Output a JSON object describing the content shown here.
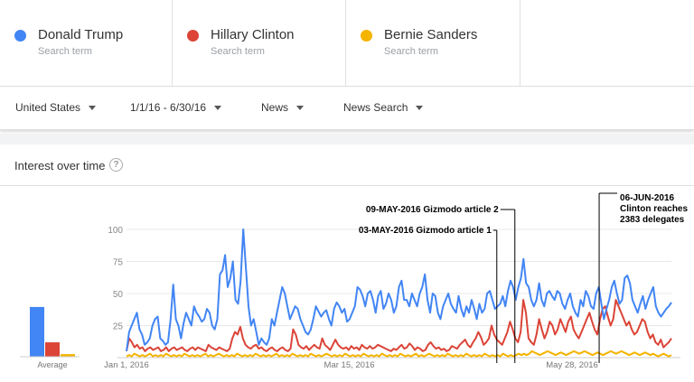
{
  "terms": [
    {
      "name": "Donald Trump",
      "sub": "Search term",
      "color": "#4285f4"
    },
    {
      "name": "Hillary Clinton",
      "sub": "Search term",
      "color": "#db4437"
    },
    {
      "name": "Bernie Sanders",
      "sub": "Search term",
      "color": "#f4b400"
    }
  ],
  "filters": {
    "region": "United States",
    "date_range": "1/1/16 - 6/30/16",
    "category": "News",
    "search_type": "News Search"
  },
  "card": {
    "title": "Interest over time",
    "help_icon": "help-circle-icon"
  },
  "average": {
    "label": "Average",
    "values": [
      38,
      11,
      2
    ]
  },
  "chart_data": {
    "type": "line",
    "title": "Interest over time",
    "ylim": [
      0,
      100
    ],
    "yticks": [
      "100",
      "75",
      "50",
      "25"
    ],
    "xtick_labels": [
      "Jan 1, 2016",
      "Mar 15, 2016",
      "May 28, 2016"
    ],
    "x_range": [
      "2016-01-01",
      "2016-06-30"
    ],
    "grid": true,
    "series": [
      {
        "name": "Donald Trump",
        "color": "#4285f4",
        "values": [
          5,
          20,
          25,
          30,
          35,
          22,
          18,
          10,
          12,
          15,
          25,
          30,
          32,
          15,
          13,
          10,
          12,
          30,
          57,
          30,
          25,
          15,
          27,
          35,
          30,
          25,
          40,
          35,
          32,
          28,
          30,
          38,
          35,
          25,
          22,
          30,
          65,
          68,
          80,
          55,
          62,
          75,
          45,
          42,
          60,
          100,
          70,
          40,
          25,
          30,
          20,
          10,
          15,
          12,
          10,
          15,
          30,
          25,
          35,
          45,
          55,
          50,
          40,
          30,
          35,
          40,
          38,
          30,
          25,
          20,
          18,
          22,
          30,
          40,
          36,
          32,
          35,
          37,
          30,
          25,
          38,
          43,
          40,
          35,
          38,
          28,
          30,
          35,
          40,
          55,
          53,
          48,
          40,
          50,
          52,
          45,
          35,
          48,
          52,
          38,
          42,
          50,
          45,
          35,
          40,
          55,
          60,
          45,
          45,
          40,
          50,
          45,
          40,
          50,
          55,
          65,
          45,
          35,
          50,
          48,
          35,
          30,
          40,
          45,
          50,
          42,
          38,
          35,
          48,
          38,
          32,
          40,
          35,
          45,
          38,
          30,
          42,
          35,
          38,
          50,
          52,
          45,
          38,
          40,
          42,
          48,
          40,
          52,
          60,
          55,
          45,
          55,
          62,
          77,
          58,
          55,
          45,
          40,
          45,
          58,
          45,
          40,
          50,
          52,
          48,
          45,
          52,
          50,
          42,
          38,
          45,
          50,
          40,
          35,
          32,
          45,
          40,
          52,
          48,
          40,
          38,
          50,
          55,
          42,
          30,
          38,
          45,
          55,
          60,
          50,
          42,
          45,
          62,
          64,
          58,
          45,
          40,
          35,
          42,
          48,
          38,
          45,
          50,
          55,
          40,
          35,
          32,
          35,
          38,
          40,
          43
        ]
      },
      {
        "name": "Hillary Clinton",
        "color": "#db4437",
        "values": [
          5,
          15,
          12,
          8,
          10,
          7,
          8,
          5,
          7,
          8,
          6,
          7,
          8,
          5,
          6,
          8,
          5,
          7,
          8,
          6,
          7,
          8,
          6,
          5,
          7,
          8,
          6,
          8,
          7,
          6,
          5,
          10,
          8,
          7,
          6,
          8,
          7,
          6,
          5,
          7,
          15,
          20,
          18,
          24,
          15,
          10,
          8,
          7,
          9,
          10,
          7,
          8,
          6,
          5,
          7,
          8,
          6,
          5,
          7,
          8,
          6,
          5,
          7,
          22,
          18,
          10,
          8,
          7,
          9,
          6,
          8,
          10,
          8,
          7,
          15,
          10,
          8,
          6,
          10,
          14,
          10,
          8,
          7,
          8,
          6,
          9,
          7,
          8,
          6,
          10,
          8,
          7,
          9,
          7,
          8,
          10,
          9,
          8,
          7,
          6,
          5,
          7,
          6,
          8,
          10,
          7,
          8,
          11,
          9,
          6,
          8,
          7,
          5,
          6,
          10,
          12,
          9,
          7,
          8,
          6,
          7,
          5,
          6,
          9,
          8,
          7,
          10,
          12,
          14,
          10,
          8,
          12,
          15,
          20,
          16,
          10,
          12,
          15,
          25,
          18,
          14,
          12,
          10,
          15,
          20,
          28,
          22,
          15,
          12,
          20,
          45,
          35,
          15,
          12,
          10,
          18,
          30,
          22,
          15,
          20,
          28,
          25,
          18,
          22,
          30,
          25,
          20,
          28,
          32,
          22,
          18,
          15,
          20,
          25,
          30,
          35,
          28,
          22,
          18,
          30,
          38,
          40,
          32,
          25,
          30,
          45,
          40,
          35,
          30,
          25,
          28,
          22,
          18,
          20,
          25,
          30,
          28,
          20,
          15,
          18,
          12,
          10,
          14,
          8,
          10,
          12,
          15
        ]
      },
      {
        "name": "Bernie Sanders",
        "color": "#f4b400",
        "values": [
          1,
          2,
          1,
          3,
          2,
          1,
          2,
          1,
          2,
          3,
          1,
          2,
          1,
          2,
          1,
          3,
          2,
          1,
          2,
          1,
          2,
          1,
          3,
          2,
          1,
          2,
          1,
          2,
          1,
          2,
          3,
          1,
          2,
          1,
          2,
          3,
          2,
          1,
          2,
          1,
          2,
          1,
          3,
          2,
          1,
          2,
          1,
          2,
          1,
          3,
          2,
          1,
          2,
          1,
          2,
          1,
          2,
          3,
          1,
          2,
          1,
          2,
          1,
          3,
          2,
          1,
          2,
          1,
          2,
          1,
          3,
          2,
          1,
          2,
          1,
          2,
          3,
          2,
          1,
          2,
          1,
          2,
          1,
          3,
          2,
          1,
          2,
          1,
          2,
          1,
          3,
          2,
          1,
          2,
          1,
          2,
          1,
          3,
          2,
          1,
          2,
          1,
          2,
          1,
          3,
          2,
          1,
          2,
          1,
          2,
          3,
          1,
          2,
          1,
          2,
          3,
          2,
          1,
          2,
          1,
          2,
          1,
          3,
          2,
          1,
          2,
          1,
          2,
          1,
          3,
          2,
          1,
          2,
          1,
          2,
          1,
          3,
          2,
          1,
          2,
          1,
          2,
          1,
          3,
          2,
          1,
          2,
          1,
          2,
          3,
          2,
          3,
          2,
          3,
          5,
          4,
          3,
          2,
          3,
          4,
          5,
          4,
          3,
          2,
          3,
          4,
          3,
          2,
          3,
          4,
          5,
          4,
          3,
          4,
          5,
          4,
          3,
          2,
          3,
          4,
          3,
          2,
          3,
          4,
          5,
          4,
          3,
          4,
          5,
          4,
          3,
          2,
          3,
          4,
          3,
          2,
          3,
          4,
          3,
          2,
          3,
          2,
          1,
          2,
          3,
          2,
          1,
          2
        ]
      }
    ],
    "annotations": [
      {
        "date": "2016-05-03",
        "text": [
          "03-MAY-2016 Gizmodo article 1"
        ]
      },
      {
        "date": "2016-05-09",
        "text": [
          "09-MAY-2016 Gizmodo article 2"
        ]
      },
      {
        "date": "2016-06-06",
        "text": [
          "06-JUN-2016",
          "Clinton reaches",
          "2383 delegates"
        ]
      }
    ]
  }
}
